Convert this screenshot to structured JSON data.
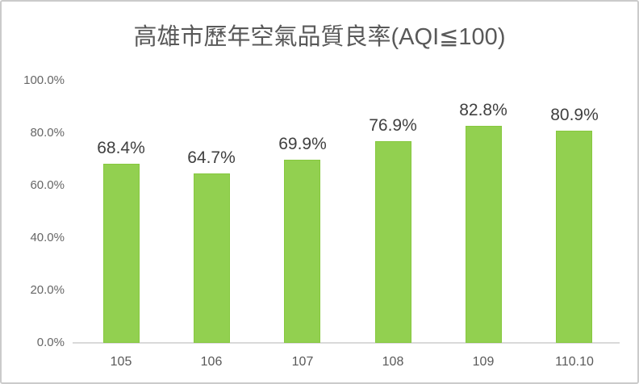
{
  "chart_data": {
    "type": "bar",
    "title": "高雄市歷年空氣品質良率(AQI≦100)",
    "categories": [
      "105",
      "106",
      "107",
      "108",
      "109",
      "110.10"
    ],
    "values": [
      68.4,
      64.7,
      69.9,
      76.9,
      82.8,
      80.9
    ],
    "data_labels": [
      "68.4%",
      "64.7%",
      "69.9%",
      "76.9%",
      "82.8%",
      "80.9%"
    ],
    "xlabel": "",
    "ylabel": "",
    "ylim": [
      0,
      100
    ],
    "y_tick_labels": [
      "100.0%",
      "80.0%",
      "60.0%",
      "40.0%",
      "20.0%",
      "0.0%"
    ],
    "y_tick_values": [
      100,
      80,
      60,
      40,
      20,
      0
    ],
    "grid": false,
    "legend": false,
    "colors": {
      "bar_fill": "#92d050",
      "bar_border": "#86c83e",
      "title_text": "#595959",
      "data_label_text": "#404040",
      "axis_tick_text": "#666666",
      "axis_line": "#d9d9d9",
      "frame_border": "#cbcbcb",
      "background": "#ffffff"
    }
  }
}
